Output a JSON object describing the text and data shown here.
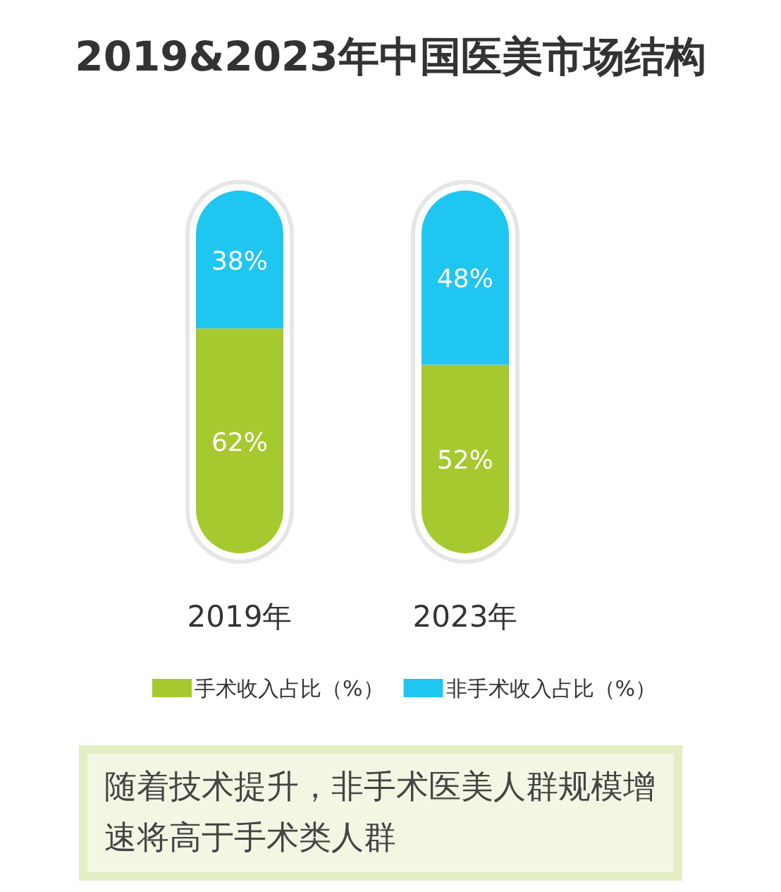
{
  "chart_data": {
    "type": "bar",
    "stacked": true,
    "title": "2019&2023年中国医美市场结构",
    "categories": [
      "2019年",
      "2023年"
    ],
    "series": [
      {
        "name": "手术收入占比（%）",
        "color": "#a5c92f",
        "values": [
          62,
          52
        ],
        "value_labels": [
          "62%",
          "52%"
        ]
      },
      {
        "name": "非手术收入占比（%）",
        "color": "#1fc6ef",
        "values": [
          38,
          48
        ],
        "value_labels": [
          "38%",
          "48%"
        ]
      }
    ],
    "legend": "bottom",
    "annotations": [
      "随着技术提升，非手术医美人群规模增速将高于手术类人群"
    ]
  }
}
